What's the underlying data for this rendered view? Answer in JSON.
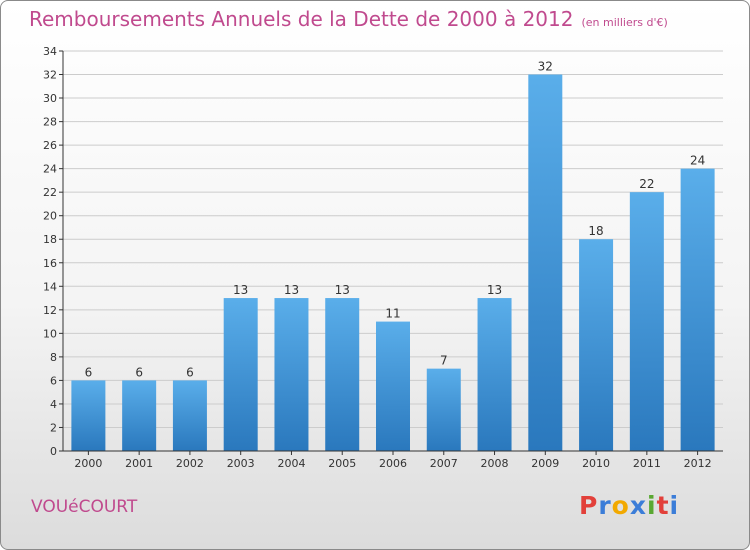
{
  "title": "Remboursements Annuels de la Dette de 2000 à 2012",
  "subtitle": "(en milliers d'€)",
  "commune": "VOUéCOURT",
  "logo": {
    "text": "Proxiti",
    "letters": [
      {
        "ch": "P",
        "color": "#e2403a"
      },
      {
        "ch": "r",
        "color": "#3b7dd8"
      },
      {
        "ch": "o",
        "color": "#f2a900"
      },
      {
        "ch": "x",
        "color": "#3b7dd8"
      },
      {
        "ch": "i",
        "color": "#5aa832"
      },
      {
        "ch": "t",
        "color": "#e2403a"
      },
      {
        "ch": "i",
        "color": "#3b7dd8"
      }
    ]
  },
  "colors": {
    "bar_top": "#5aaeea",
    "bar_bottom": "#2a78bd",
    "title": "#c04a8e",
    "grid": "#cccccc"
  },
  "chart_data": {
    "type": "bar",
    "categories": [
      "2000",
      "2001",
      "2002",
      "2003",
      "2004",
      "2005",
      "2006",
      "2007",
      "2008",
      "2009",
      "2010",
      "2011",
      "2012"
    ],
    "values": [
      6,
      6,
      6,
      13,
      13,
      13,
      11,
      7,
      13,
      32,
      18,
      22,
      24
    ],
    "ylim": [
      0,
      34
    ],
    "yticks": [
      0,
      2,
      4,
      6,
      8,
      10,
      12,
      14,
      16,
      18,
      20,
      22,
      24,
      26,
      28,
      30,
      32,
      34
    ],
    "grid": true,
    "xlabel": "",
    "ylabel": ""
  }
}
